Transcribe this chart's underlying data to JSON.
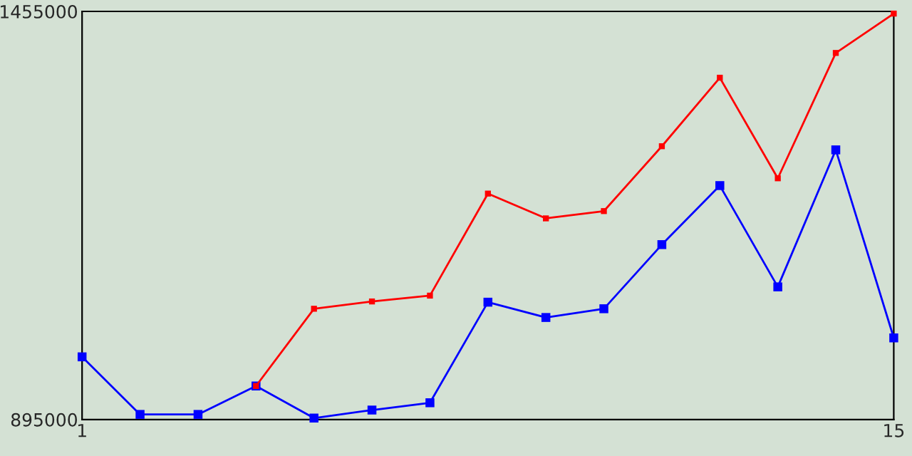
{
  "chart_data": {
    "type": "line",
    "x": [
      1,
      2,
      3,
      4,
      5,
      6,
      7,
      8,
      9,
      10,
      11,
      12,
      13,
      14,
      15
    ],
    "series": [
      {
        "color": "#0000ff",
        "values": [
          981000,
          902000,
          902000,
          941000,
          897000,
          908000,
          918000,
          1056000,
          1035000,
          1047000,
          1135000,
          1216000,
          1077000,
          1265000,
          1007000
        ]
      },
      {
        "color": "#ff0000",
        "values": [
          null,
          null,
          null,
          941000,
          1047000,
          1057000,
          1065000,
          1205000,
          1171000,
          1181000,
          1270000,
          1364000,
          1226000,
          1398000,
          1452000
        ]
      }
    ],
    "xlim": [
      1,
      15
    ],
    "xticks": [
      1,
      15
    ],
    "ylim": [
      895000,
      1455000
    ],
    "yticks": [
      895000,
      1455000
    ],
    "marker": "square",
    "line_style": "solid"
  }
}
